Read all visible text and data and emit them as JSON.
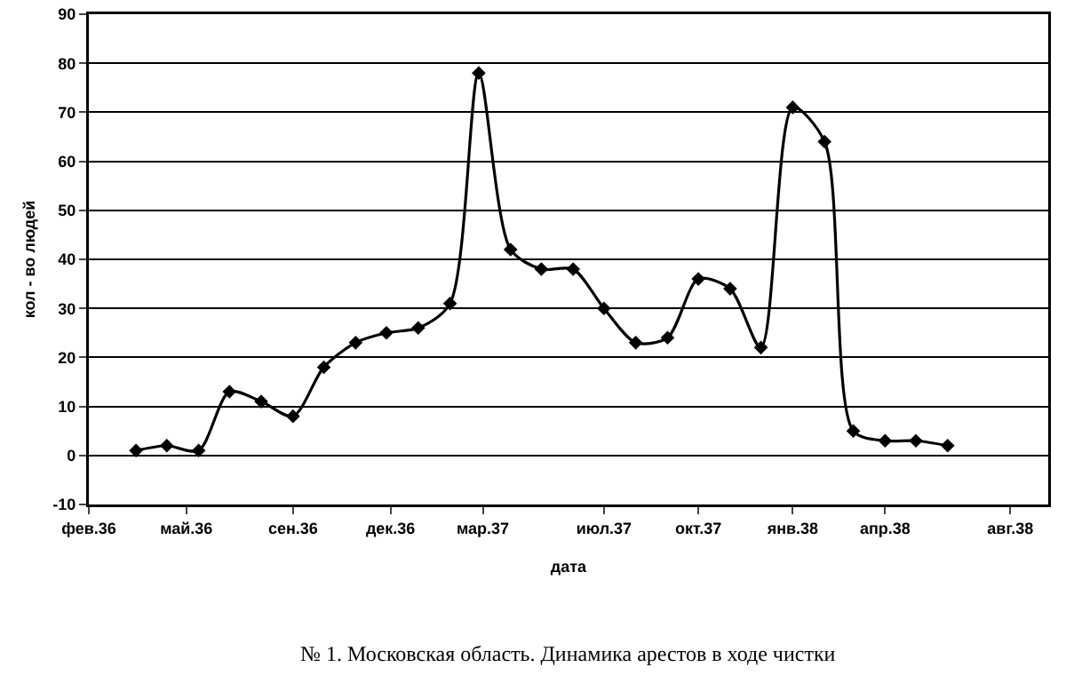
{
  "chart_data": {
    "type": "line",
    "xlabel": "дата",
    "ylabel": "кол - во людей",
    "annotations": [
      "№ 1. Московская область. Динамика арестов в ходе чистки"
    ],
    "x": [
      "1936-04",
      "1936-05",
      "1936-06",
      "1936-07",
      "1936-08",
      "1936-09",
      "1936-10",
      "1936-11",
      "1936-12",
      "1937-01",
      "1937-02",
      "1937-03",
      "1937-04",
      "1937-05",
      "1937-06",
      "1937-07",
      "1937-08",
      "1937-09",
      "1937-10",
      "1937-11",
      "1937-12",
      "1938-01",
      "1938-02",
      "1938-03",
      "1938-04",
      "1938-05",
      "1938-06"
    ],
    "series": [
      {
        "color": "#000000",
        "values": [
          1,
          2,
          1,
          13,
          11,
          8,
          18,
          23,
          25,
          26,
          31,
          78,
          42,
          38,
          38,
          30,
          23,
          24,
          36,
          34,
          22,
          71,
          64,
          5,
          3,
          3,
          2
        ]
      }
    ],
    "xlim": [
      "1936-02-15",
      "1938-09-07"
    ],
    "xticks": [
      {
        "value": "1936-02-15",
        "label": "фев.36"
      },
      {
        "value": "1936-05-20",
        "label": "май.36"
      },
      {
        "value": "1936-09-01",
        "label": "сен.36"
      },
      {
        "value": "1936-12-05",
        "label": "дек.36"
      },
      {
        "value": "1937-03-05",
        "label": "мар.37"
      },
      {
        "value": "1937-07-01",
        "label": "июл.37"
      },
      {
        "value": "1937-10-01",
        "label": "окт.37"
      },
      {
        "value": "1938-01-01",
        "label": "янв.38"
      },
      {
        "value": "1938-04-01",
        "label": "апр.38"
      },
      {
        "value": "1938-08-01",
        "label": "авг.38"
      }
    ],
    "ylim": [
      -10,
      90
    ],
    "yticks": [
      -10,
      0,
      10,
      20,
      30,
      40,
      50,
      60,
      70,
      80,
      90
    ],
    "grid": "y",
    "marker": "diamond",
    "line_style": "solid"
  }
}
